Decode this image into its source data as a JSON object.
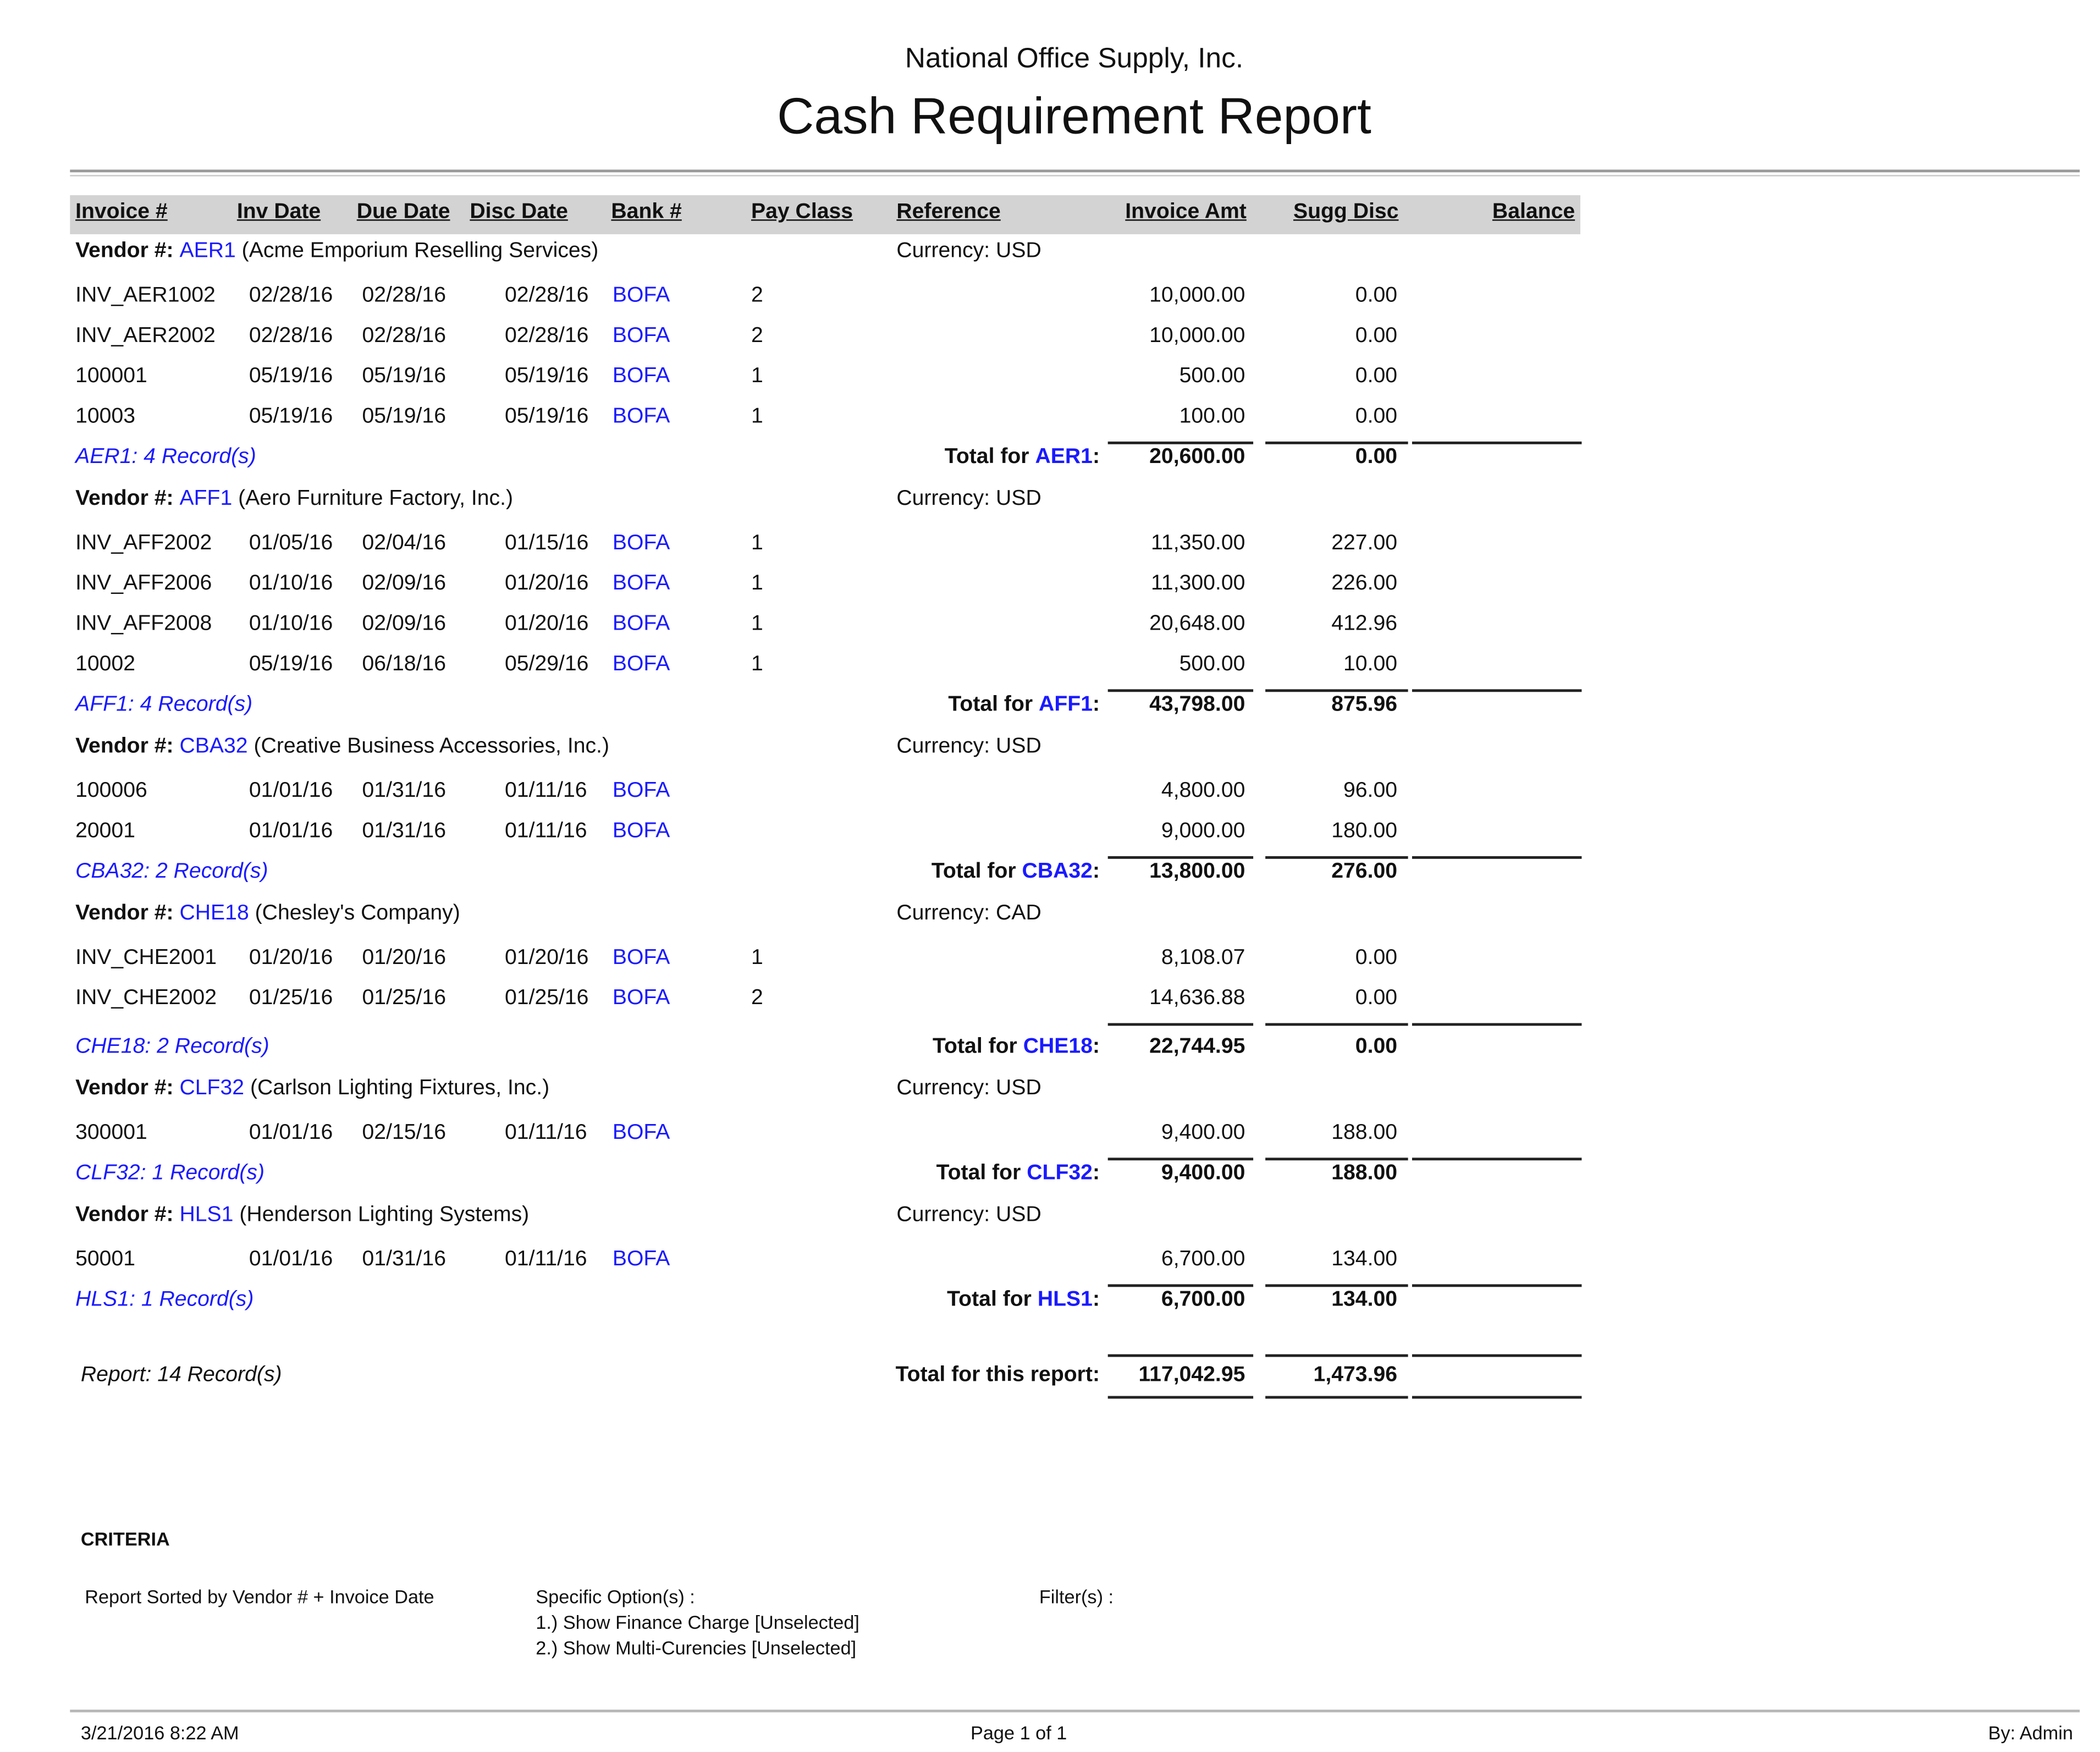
{
  "report": {
    "company": "National Office Supply, Inc.",
    "title": "Cash Requirement Report"
  },
  "columns": [
    "Invoice #",
    "Inv Date",
    "Due Date",
    "Disc Date",
    "Bank #",
    "Pay Class",
    "Reference",
    "Invoice Amt",
    "Sugg Disc",
    "Balance"
  ],
  "labels": {
    "vendor_prefix": "Vendor #:",
    "currency_prefix": "Currency:",
    "total_for": "Total for"
  },
  "vendors": [
    {
      "id": "AER1",
      "name": "(Acme Emporium Reselling Services)",
      "currency": "USD",
      "records": "AER1: 4 Record(s)",
      "total_amt": "20,600.00",
      "total_disc": "0.00",
      "rows": [
        {
          "invoice": "INV_AER1002",
          "inv_date": "02/28/16",
          "due_date": "02/28/16",
          "disc_date": "02/28/16",
          "bank": "BOFA",
          "pay_class": "2",
          "invoice_amt": "10,000.00",
          "sugg_disc": "0.00"
        },
        {
          "invoice": "INV_AER2002",
          "inv_date": "02/28/16",
          "due_date": "02/28/16",
          "disc_date": "02/28/16",
          "bank": "BOFA",
          "pay_class": "2",
          "invoice_amt": "10,000.00",
          "sugg_disc": "0.00"
        },
        {
          "invoice": "100001",
          "inv_date": "05/19/16",
          "due_date": "05/19/16",
          "disc_date": "05/19/16",
          "bank": "BOFA",
          "pay_class": "1",
          "invoice_amt": "500.00",
          "sugg_disc": "0.00"
        },
        {
          "invoice": "10003",
          "inv_date": "05/19/16",
          "due_date": "05/19/16",
          "disc_date": "05/19/16",
          "bank": "BOFA",
          "pay_class": "1",
          "invoice_amt": "100.00",
          "sugg_disc": "0.00"
        }
      ]
    },
    {
      "id": "AFF1",
      "name": "(Aero Furniture Factory, Inc.)",
      "currency": "USD",
      "records": "AFF1: 4 Record(s)",
      "total_amt": "43,798.00",
      "total_disc": "875.96",
      "rows": [
        {
          "invoice": "INV_AFF2002",
          "inv_date": "01/05/16",
          "due_date": "02/04/16",
          "disc_date": "01/15/16",
          "bank": "BOFA",
          "pay_class": "1",
          "invoice_amt": "11,350.00",
          "sugg_disc": "227.00"
        },
        {
          "invoice": "INV_AFF2006",
          "inv_date": "01/10/16",
          "due_date": "02/09/16",
          "disc_date": "01/20/16",
          "bank": "BOFA",
          "pay_class": "1",
          "invoice_amt": "11,300.00",
          "sugg_disc": "226.00"
        },
        {
          "invoice": "INV_AFF2008",
          "inv_date": "01/10/16",
          "due_date": "02/09/16",
          "disc_date": "01/20/16",
          "bank": "BOFA",
          "pay_class": "1",
          "invoice_amt": "20,648.00",
          "sugg_disc": "412.96"
        },
        {
          "invoice": "10002",
          "inv_date": "05/19/16",
          "due_date": "06/18/16",
          "disc_date": "05/29/16",
          "bank": "BOFA",
          "pay_class": "1",
          "invoice_amt": "500.00",
          "sugg_disc": "10.00"
        }
      ]
    },
    {
      "id": "CBA32",
      "name": "(Creative Business Accessories, Inc.)",
      "currency": "USD",
      "records": "CBA32: 2 Record(s)",
      "total_amt": "13,800.00",
      "total_disc": "276.00",
      "rows": [
        {
          "invoice": "100006",
          "inv_date": "01/01/16",
          "due_date": "01/31/16",
          "disc_date": "01/11/16",
          "bank": "BOFA",
          "pay_class": "",
          "invoice_amt": "4,800.00",
          "sugg_disc": "96.00"
        },
        {
          "invoice": "20001",
          "inv_date": "01/01/16",
          "due_date": "01/31/16",
          "disc_date": "01/11/16",
          "bank": "BOFA",
          "pay_class": "",
          "invoice_amt": "9,000.00",
          "sugg_disc": "180.00"
        }
      ]
    },
    {
      "id": "CHE18",
      "name": "(Chesley's Company)",
      "currency": "CAD",
      "records": "CHE18: 2 Record(s)",
      "total_amt": "22,744.95",
      "total_disc": "0.00",
      "rows": [
        {
          "invoice": "INV_CHE2001",
          "inv_date": "01/20/16",
          "due_date": "01/20/16",
          "disc_date": "01/20/16",
          "bank": "BOFA",
          "pay_class": "1",
          "invoice_amt": "8,108.07",
          "sugg_disc": "0.00"
        },
        {
          "invoice": "INV_CHE2002",
          "inv_date": "01/25/16",
          "due_date": "01/25/16",
          "disc_date": "01/25/16",
          "bank": "BOFA",
          "pay_class": "2",
          "invoice_amt": "14,636.88",
          "sugg_disc": "0.00"
        }
      ]
    },
    {
      "id": "CLF32",
      "name": "(Carlson Lighting Fixtures, Inc.)",
      "currency": "USD",
      "records": "CLF32: 1 Record(s)",
      "total_amt": "9,400.00",
      "total_disc": "188.00",
      "rows": [
        {
          "invoice": "300001",
          "inv_date": "01/01/16",
          "due_date": "02/15/16",
          "disc_date": "01/11/16",
          "bank": "BOFA",
          "pay_class": "",
          "invoice_amt": "9,400.00",
          "sugg_disc": "188.00"
        }
      ]
    },
    {
      "id": "HLS1",
      "name": "(Henderson Lighting Systems)",
      "currency": "USD",
      "records": "HLS1: 1 Record(s)",
      "total_amt": "6,700.00",
      "total_disc": "134.00",
      "rows": [
        {
          "invoice": "50001",
          "inv_date": "01/01/16",
          "due_date": "01/31/16",
          "disc_date": "01/11/16",
          "bank": "BOFA",
          "pay_class": "",
          "invoice_amt": "6,700.00",
          "sugg_disc": "134.00"
        }
      ]
    }
  ],
  "report_total": {
    "records": "Report: 14 Record(s)",
    "label": "Total for this report:",
    "invoice_amt": "117,042.95",
    "sugg_disc": "1,473.96"
  },
  "criteria": {
    "heading": "CRITERIA",
    "sorted_by": "Report Sorted by Vendor # + Invoice Date",
    "options_heading": "Specific Option(s) :",
    "options": [
      "1.) Show Finance Charge [Unselected]",
      "2.) Show Multi-Curencies [Unselected]"
    ],
    "filters_heading": "Filter(s) :"
  },
  "footer": {
    "datetime": "3/21/2016 8:22 AM",
    "page": "Page 1 of 1",
    "by": "By: Admin"
  },
  "colors": {
    "link": "#1a1aff",
    "header_band": "#d3d3d3"
  }
}
